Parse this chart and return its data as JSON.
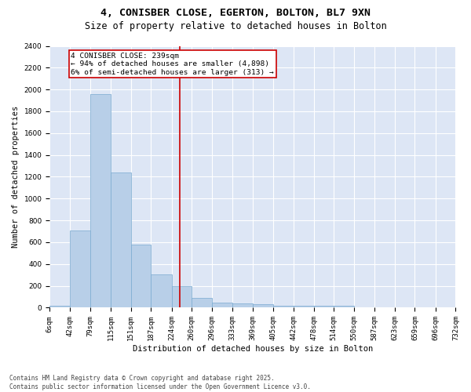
{
  "title1": "4, CONISBER CLOSE, EGERTON, BOLTON, BL7 9XN",
  "title2": "Size of property relative to detached houses in Bolton",
  "xlabel": "Distribution of detached houses by size in Bolton",
  "ylabel": "Number of detached properties",
  "bin_edges": [
    6,
    42,
    79,
    115,
    151,
    187,
    224,
    260,
    296,
    333,
    369,
    405,
    442,
    478,
    514,
    550,
    587,
    623,
    659,
    696,
    732
  ],
  "bar_heights": [
    15,
    710,
    1960,
    1240,
    575,
    305,
    200,
    90,
    50,
    38,
    35,
    20,
    20,
    20,
    15,
    0,
    0,
    0,
    0,
    0
  ],
  "bar_color": "#b8cfe8",
  "bar_edge_color": "#7aaad0",
  "property_size": 239,
  "vline_color": "#cc0000",
  "annotation_text": "4 CONISBER CLOSE: 239sqm\n← 94% of detached houses are smaller (4,898)\n6% of semi-detached houses are larger (313) →",
  "annotation_box_color": "#ffffff",
  "annotation_box_edge": "#cc0000",
  "ylim": [
    0,
    2400
  ],
  "yticks": [
    0,
    200,
    400,
    600,
    800,
    1000,
    1200,
    1400,
    1600,
    1800,
    2000,
    2200,
    2400
  ],
  "background_color": "#dde6f5",
  "grid_color": "#ffffff",
  "footer_text": "Contains HM Land Registry data © Crown copyright and database right 2025.\nContains public sector information licensed under the Open Government Licence v3.0.",
  "title1_fontsize": 9.5,
  "title2_fontsize": 8.5,
  "label_fontsize": 7.5,
  "tick_fontsize": 6.5,
  "footer_fontsize": 5.5,
  "annot_fontsize": 6.8
}
